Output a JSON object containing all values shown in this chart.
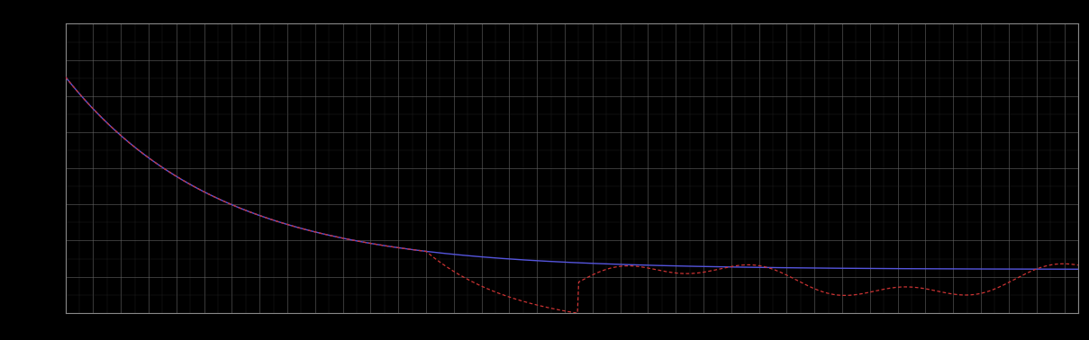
{
  "background_color": "#000000",
  "plot_bg_color": "#000000",
  "grid_color": "#666666",
  "grid_linewidth": 0.4,
  "blue_line_color": "#5555dd",
  "red_line_color": "#cc3333",
  "figsize": [
    12.09,
    3.78
  ],
  "dpi": 100,
  "spine_color": "#888888",
  "tick_color": "#888888"
}
